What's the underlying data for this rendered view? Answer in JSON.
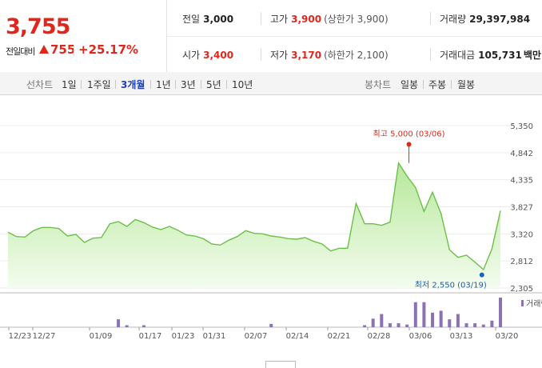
{
  "quote": {
    "price": "3,755",
    "change_label": "전일대비",
    "change_amount": "755",
    "change_rate": "+25.17%"
  },
  "info": {
    "prev_label": "전일",
    "prev_value": "3,000",
    "open_label": "시가",
    "open_value": "3,400",
    "high_label": "고가",
    "high_value": "3,900",
    "upper_limit": "(상한가 3,900)",
    "low_label": "저가",
    "low_value": "3,170",
    "lower_limit": "(하한가 2,100)",
    "volume_label": "거래량",
    "volume_value": "29,397,984",
    "amount_label": "거래대금",
    "amount_value": "105,731",
    "amount_unit": "백만"
  },
  "tabs": {
    "line_label": "선차트",
    "line_items": [
      "1일",
      "1주일",
      "3개월",
      "1년",
      "3년",
      "5년",
      "10년"
    ],
    "selected": "3개월",
    "candle_label": "봉차트",
    "candle_items": [
      "일봉",
      "주봉",
      "월봉"
    ]
  },
  "chart_data": {
    "type": "area",
    "title": "",
    "yticks": [
      "5,350",
      "4,842",
      "4,335",
      "3,827",
      "3,320",
      "2,812",
      "2,305"
    ],
    "ylim": [
      2305,
      5350
    ],
    "xticks": [
      "12/23",
      "12/27",
      "01/09",
      "01/17",
      "01/23",
      "01/31",
      "02/07",
      "02/14",
      "02/21",
      "02/28",
      "03/06",
      "03/13",
      "03/20"
    ],
    "series": [
      {
        "values": [
          3350,
          3270,
          3260,
          3380,
          3440,
          3440,
          3420,
          3280,
          3310,
          3160,
          3240,
          3250,
          3510,
          3550,
          3460,
          3590,
          3530,
          3450,
          3400,
          3460,
          3390,
          3300,
          3280,
          3230,
          3130,
          3110,
          3200,
          3270,
          3380,
          3330,
          3320,
          3280,
          3260,
          3230,
          3220,
          3250,
          3180,
          3130,
          3000,
          3050,
          3050,
          3890,
          3510,
          3510,
          3480,
          3540,
          4650,
          4400,
          4190,
          3740,
          4100,
          3700,
          3020,
          2880,
          2920,
          2790,
          2650,
          3040,
          3755
        ]
      }
    ],
    "max_annotation": {
      "label": "최고 5,000 (03/06)",
      "value": 5000
    },
    "min_annotation": {
      "label": "최저 2,550 (03/19)",
      "value": 2550
    },
    "volume": {
      "legend": "거래량",
      "values": [
        0,
        0,
        0,
        0,
        0,
        0,
        0,
        0,
        0,
        0,
        0,
        0,
        0,
        12,
        3,
        0,
        3,
        0,
        0,
        0,
        0,
        0,
        0,
        0,
        0,
        0,
        0,
        0,
        0,
        0,
        0,
        5,
        0,
        0,
        0,
        0,
        0,
        0,
        0,
        0,
        0,
        0,
        3,
        13,
        20,
        6,
        6,
        4,
        38,
        38,
        22,
        25,
        12,
        20,
        6,
        6,
        4,
        10,
        45
      ]
    },
    "grid": true
  },
  "colors": {
    "up": "#e1261c",
    "line": "#6cc04a",
    "fill_top": "#b6e89a",
    "volume": "#8a73b5",
    "selected_tab": "#1f3fb4"
  }
}
